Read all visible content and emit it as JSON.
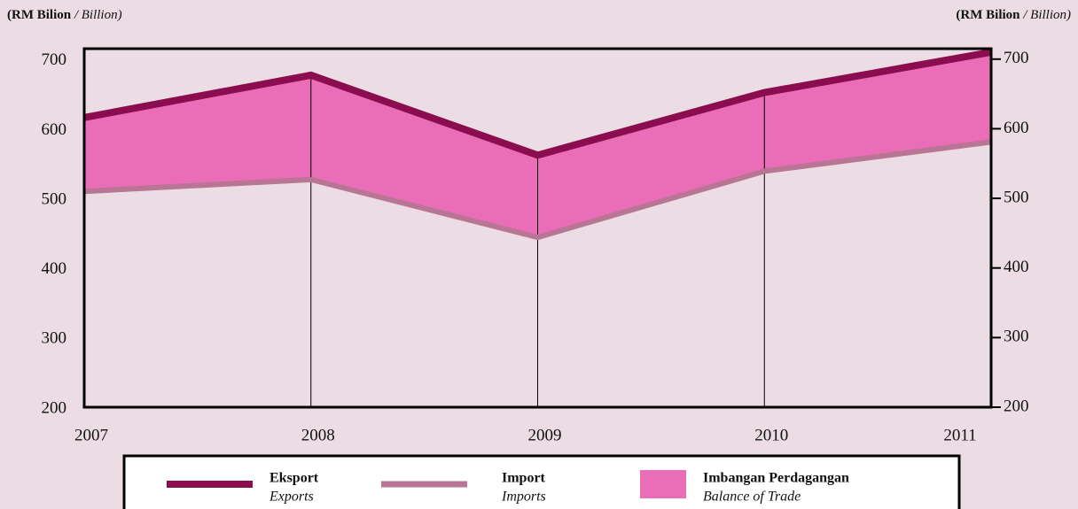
{
  "chart_data": {
    "type": "line",
    "y_label": {
      "main": "(RM Bilion",
      "sub": "/ Billion)"
    },
    "y2_label": {
      "main": "(RM Bilion",
      "sub": "/ Billion)"
    },
    "categories": [
      "2007",
      "2008",
      "2009",
      "2010",
      "2011"
    ],
    "series": [
      {
        "name": "Eksport",
        "name_en": "Exports",
        "color": "#8b0d4f",
        "values": [
          616,
          677,
          562,
          652,
          710
        ]
      },
      {
        "name": "Import",
        "name_en": "Imports",
        "color": "#b87594",
        "values": [
          510,
          527,
          444,
          539,
          581
        ]
      }
    ],
    "fill_name": "Imbangan Perdagangan",
    "fill_name_en": "Balance of Trade",
    "fill_color": "#ea6db7",
    "ylim": [
      200,
      715
    ],
    "yticks": [
      200,
      300,
      400,
      500,
      600,
      700
    ],
    "y2lim": [
      200,
      715
    ],
    "y2ticks": [
      200,
      300,
      400,
      500,
      600,
      700
    ]
  }
}
